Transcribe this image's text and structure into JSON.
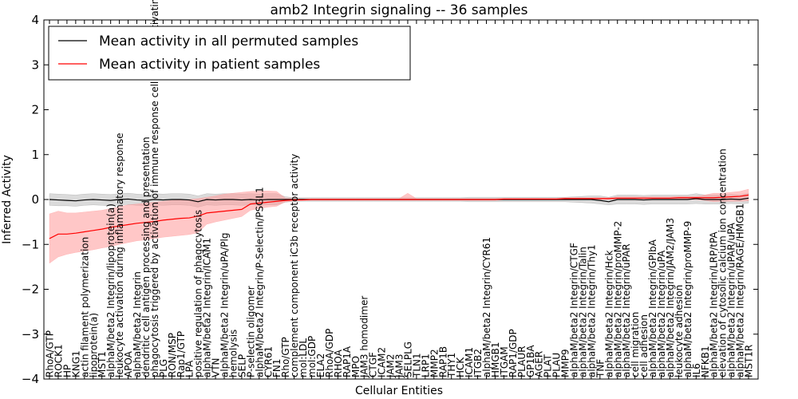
{
  "chart_data": {
    "type": "line",
    "title": "amb2 Integrin signaling -- 36 samples",
    "xlabel": "Cellular Entities",
    "ylabel": "Inferred Activity",
    "ylim": [
      -4,
      4
    ],
    "yticks": [
      -4,
      -3,
      -2,
      -1,
      0,
      1,
      2,
      3,
      4
    ],
    "ytick_labels": [
      "−4",
      "−3",
      "−2",
      "−1",
      "0",
      "1",
      "2",
      "3",
      "4"
    ],
    "legend": {
      "placement": "top-left",
      "entries": [
        {
          "label": "Mean activity in all permuted samples",
          "color": "#000000"
        },
        {
          "label": "Mean activity in patient samples",
          "color": "#ff0000"
        }
      ]
    },
    "categories": [
      "RhoA/GTP",
      "ROCK1",
      "HP",
      "KNG1",
      "actin filament polymerization",
      "lipoprotein(a)",
      "MST1",
      "alphaM/beta2 Integrin/lipoprotein(a)",
      "leukocyte activation during inflammatory response",
      "APOA",
      "alphaM/beta2 Integrin",
      "dendritic cell antigen processing and presentation",
      "phagocytosis triggered by activation of immune response cell surface activating receptor",
      "PLG",
      "RON/MSP",
      "Rap1/GTP",
      "LPA",
      "positive regulation of phagocytosis",
      "alphaM/beta2 Integrin/ICAM1",
      "VTN",
      "alphaM/beta2 Integrin/uPA/Plg",
      "hemolysis",
      "SELP",
      "P-selectin oligomer",
      "alphaM/beta2 Integrin/P-Selectin/PSGL1",
      "CYR61",
      "FN1",
      "Rho/GTP",
      "complement component iC3b receptor activity",
      "mol:LDL",
      "mol:GDP",
      "ELA2",
      "RhoA/GDP",
      "RHOA",
      "RAP1A",
      "MPO",
      "JAM3 homodimer",
      "CTGF",
      "ICAM2",
      "JAM2",
      "JAM3",
      "SELPLG",
      "TLN1",
      "LRP1",
      "MMP2",
      "RAP1B",
      "THY1",
      "HCK",
      "ICAM1",
      "ITGB2",
      "alphaM/beta2 Integrin/CYR61",
      "HMGB1",
      "ITGAM",
      "RAP1/GDP",
      "PLAUR",
      "GP1BA",
      "AGER",
      "PLAT",
      "PLAU",
      "MMP9",
      "alphaM/beta2 Integrin/CTGF",
      "alphaM/beta2 Integrin/Talin",
      "alphaM/beta2 Integrin/Thy1",
      "TNF",
      "alphaM/beta2 Integrin/Hck",
      "alphaM/beta2 Integrin/proMMP-2",
      "alphaM/beta2 Integrin/uPAR",
      "cell migration",
      "cell adhesion",
      "alphaM/beta2 Integrin/GPIbA",
      "alphaM/beta2 Integrin/uPA",
      "alphaM/beta2 Integrin/JAM2/JAM3",
      "leukocyte adhesion",
      "alphaM/beta2 Integrin/proMMP-9",
      "IL6",
      "NFKB1",
      "alphaM/beta2 Integrin/LRP/tPA",
      "elevation of cytosolic calcium ion concentration",
      "alphaM/beta2 Integrin/uPAR/uPA",
      "alphaM/beta2 Integrin/RAGE/HMGB1",
      "MST1R"
    ],
    "series": [
      {
        "name": "Mean activity in all permuted samples",
        "color": "#000000",
        "band_color": "#999999",
        "values": [
          0.0,
          -0.01,
          -0.02,
          -0.03,
          -0.01,
          0.0,
          -0.01,
          -0.02,
          0.0,
          0.01,
          -0.01,
          -0.02,
          0.0,
          -0.01,
          0.0,
          0.0,
          -0.01,
          -0.05,
          0.0,
          -0.01,
          0.0,
          0.0,
          -0.01,
          0.0,
          -0.01,
          0.0,
          0.0,
          0.0,
          0.0,
          0.0,
          0.0,
          0.0,
          0.0,
          0.0,
          0.0,
          0.0,
          0.0,
          0.0,
          0.0,
          0.0,
          0.0,
          0.0,
          0.0,
          0.0,
          0.0,
          0.0,
          0.0,
          0.0,
          0.0,
          0.0,
          0.0,
          0.0,
          0.0,
          0.0,
          0.0,
          0.0,
          0.0,
          0.0,
          0.0,
          0.0,
          0.0,
          0.0,
          0.0,
          -0.02,
          -0.05,
          0.0,
          0.0,
          0.0,
          -0.01,
          0.0,
          0.0,
          0.0,
          0.0,
          0.0,
          0.02,
          0.0,
          0.0,
          0.0,
          0.01,
          0.0,
          0.03
        ],
        "lower": [
          -0.13,
          -0.14,
          -0.14,
          -0.15,
          -0.13,
          -0.12,
          -0.13,
          -0.14,
          -0.12,
          -0.11,
          -0.13,
          -0.14,
          -0.12,
          -0.13,
          -0.12,
          -0.12,
          -0.13,
          -0.17,
          -0.12,
          -0.13,
          -0.12,
          -0.12,
          -0.13,
          -0.12,
          -0.13,
          -0.12,
          -0.12,
          -0.06,
          -0.04,
          -0.04,
          -0.04,
          -0.04,
          -0.04,
          -0.04,
          -0.04,
          -0.04,
          -0.04,
          -0.04,
          -0.04,
          -0.04,
          -0.04,
          -0.04,
          -0.04,
          -0.04,
          -0.04,
          -0.04,
          -0.04,
          -0.04,
          -0.05,
          -0.05,
          -0.05,
          -0.05,
          -0.05,
          -0.05,
          -0.05,
          -0.05,
          -0.05,
          -0.05,
          -0.05,
          -0.05,
          -0.06,
          -0.07,
          -0.08,
          -0.1,
          -0.12,
          -0.1,
          -0.1,
          -0.1,
          -0.11,
          -0.1,
          -0.1,
          -0.1,
          -0.1,
          -0.1,
          -0.09,
          -0.1,
          -0.1,
          -0.1,
          -0.09,
          -0.1,
          -0.08
        ],
        "upper": [
          0.13,
          0.12,
          0.11,
          0.1,
          0.12,
          0.13,
          0.12,
          0.11,
          0.13,
          0.14,
          0.12,
          0.11,
          0.13,
          0.12,
          0.13,
          0.13,
          0.12,
          0.08,
          0.13,
          0.12,
          0.13,
          0.13,
          0.12,
          0.13,
          0.12,
          0.13,
          0.13,
          0.06,
          0.04,
          0.04,
          0.04,
          0.04,
          0.04,
          0.04,
          0.04,
          0.04,
          0.04,
          0.04,
          0.04,
          0.04,
          0.04,
          0.04,
          0.04,
          0.04,
          0.04,
          0.04,
          0.04,
          0.04,
          0.05,
          0.05,
          0.05,
          0.05,
          0.05,
          0.05,
          0.05,
          0.05,
          0.05,
          0.05,
          0.05,
          0.05,
          0.06,
          0.07,
          0.08,
          0.08,
          0.05,
          0.1,
          0.1,
          0.1,
          0.09,
          0.1,
          0.1,
          0.1,
          0.1,
          0.1,
          0.13,
          0.1,
          0.1,
          0.1,
          0.11,
          0.1,
          0.14
        ]
      },
      {
        "name": "Mean activity in patient samples",
        "color": "#ff0000",
        "band_color": "#ff9999",
        "values": [
          -0.87,
          -0.77,
          -0.77,
          -0.75,
          -0.72,
          -0.69,
          -0.66,
          -0.62,
          -0.59,
          -0.56,
          -0.53,
          -0.51,
          -0.49,
          -0.46,
          -0.44,
          -0.42,
          -0.41,
          -0.37,
          -0.3,
          -0.28,
          -0.26,
          -0.24,
          -0.22,
          -0.1,
          -0.08,
          -0.06,
          -0.04,
          -0.02,
          -0.01,
          -0.01,
          0.0,
          0.0,
          0.0,
          0.0,
          0.0,
          0.0,
          0.0,
          0.0,
          0.0,
          0.0,
          0.0,
          0.0,
          0.0,
          0.0,
          0.0,
          0.0,
          0.0,
          0.0,
          0.0,
          0.0,
          0.0,
          0.0,
          0.01,
          0.01,
          0.01,
          0.01,
          0.01,
          0.01,
          0.01,
          0.02,
          0.02,
          0.02,
          0.02,
          0.02,
          0.02,
          0.03,
          0.03,
          0.03,
          0.03,
          0.03,
          0.03,
          0.03,
          0.04,
          0.04,
          0.04,
          0.04,
          0.04,
          0.05,
          0.06,
          0.07,
          0.1
        ],
        "lower": [
          -1.42,
          -1.28,
          -1.22,
          -1.18,
          -1.15,
          -1.12,
          -1.08,
          -1.05,
          -1.0,
          -0.96,
          -0.92,
          -0.9,
          -0.87,
          -0.84,
          -0.82,
          -0.8,
          -0.78,
          -0.74,
          -0.55,
          -0.5,
          -0.46,
          -0.42,
          -0.38,
          -0.24,
          -0.2,
          -0.17,
          -0.15,
          -0.05,
          -0.03,
          -0.02,
          -0.02,
          -0.02,
          -0.02,
          -0.02,
          -0.02,
          -0.02,
          -0.02,
          -0.02,
          -0.02,
          -0.02,
          -0.02,
          -0.02,
          -0.02,
          -0.02,
          -0.02,
          -0.02,
          -0.02,
          -0.02,
          -0.02,
          -0.02,
          -0.02,
          -0.02,
          -0.01,
          -0.01,
          -0.01,
          -0.01,
          -0.01,
          -0.01,
          -0.01,
          0.0,
          0.0,
          0.0,
          0.0,
          0.0,
          0.0,
          0.0,
          0.0,
          0.0,
          0.0,
          0.0,
          0.0,
          0.0,
          0.0,
          0.0,
          0.0,
          -0.02,
          -0.05,
          -0.04,
          -0.04,
          -0.04,
          -0.03
        ],
        "upper": [
          -0.32,
          -0.26,
          -0.3,
          -0.3,
          -0.28,
          -0.26,
          -0.24,
          -0.2,
          -0.16,
          -0.12,
          -0.1,
          -0.08,
          -0.06,
          -0.04,
          -0.02,
          -0.01,
          0.0,
          0.02,
          0.05,
          0.08,
          0.12,
          0.14,
          0.16,
          0.18,
          0.19,
          0.19,
          0.18,
          0.03,
          0.02,
          0.02,
          0.02,
          0.02,
          0.02,
          0.02,
          0.02,
          0.02,
          0.02,
          0.02,
          0.02,
          0.02,
          0.02,
          0.14,
          0.02,
          0.02,
          0.02,
          0.02,
          0.02,
          0.02,
          0.02,
          0.02,
          0.02,
          0.02,
          0.03,
          0.03,
          0.03,
          0.03,
          0.03,
          0.03,
          0.03,
          0.04,
          0.04,
          0.04,
          0.04,
          0.04,
          0.04,
          0.06,
          0.06,
          0.06,
          0.06,
          0.06,
          0.06,
          0.06,
          0.07,
          0.07,
          0.07,
          0.1,
          0.14,
          0.14,
          0.16,
          0.18,
          0.23
        ]
      }
    ]
  }
}
